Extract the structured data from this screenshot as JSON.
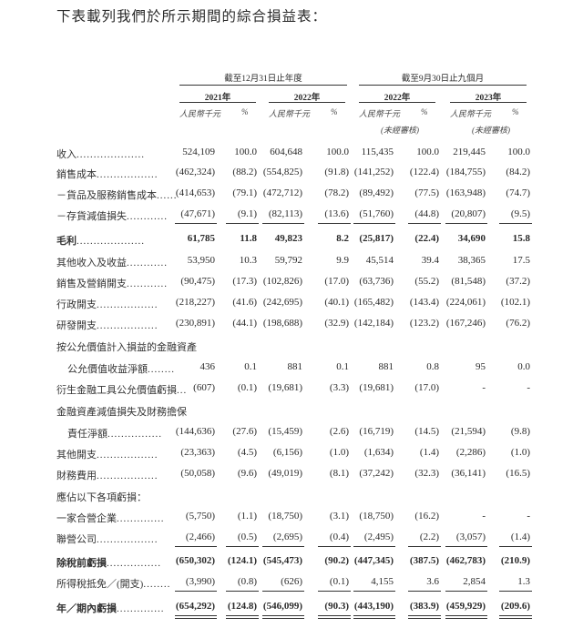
{
  "title": "下表載列我們於所示期間的綜合損益表：",
  "header": {
    "group1": "截至12月31日止年度",
    "group2": "截至9月30日止九個月",
    "years": [
      "2021年",
      "2022年",
      "2022年",
      "2023年"
    ],
    "unit_amount": "人民幣千元",
    "unit_pct": "%",
    "unaudited": "(未經審核)"
  },
  "rows": [
    {
      "label": "收入",
      "dots": "....................",
      "values": [
        "524,109",
        "100.0",
        "604,648",
        "100.0",
        "115,435",
        "100.0",
        "219,445",
        "100.0"
      ]
    },
    {
      "label": "銷售成本",
      "dots": "..................",
      "values": [
        "(462,324)",
        "(88.2)",
        "(554,825)",
        "(91.8)",
        "(141,252)",
        "(122.4)",
        "(184,755)",
        "(84.2)"
      ]
    },
    {
      "label": "－貨品及服務銷售成本",
      "dots": "......",
      "values": [
        "(414,653)",
        "(79.1)",
        "(472,712)",
        "(78.2)",
        "(89,492)",
        "(77.5)",
        "(163,948)",
        "(74.7)"
      ]
    },
    {
      "label": "－存貨減值損失",
      "dots": "............",
      "values": [
        "(47,671)",
        "(9.1)",
        "(82,113)",
        "(13.6)",
        "(51,760)",
        "(44.8)",
        "(20,807)",
        "(9.5)"
      ],
      "underline": true
    },
    {
      "label": "毛利",
      "dots": "....................",
      "values": [
        "61,785",
        "11.8",
        "49,823",
        "8.2",
        "(25,817)",
        "(22.4)",
        "34,690",
        "15.8"
      ],
      "bold": true
    },
    {
      "label": "其他收入及收益",
      "dots": "............",
      "values": [
        "53,950",
        "10.3",
        "59,792",
        "9.9",
        "45,514",
        "39.4",
        "38,365",
        "17.5"
      ]
    },
    {
      "label": "銷售及營銷開支",
      "dots": "............",
      "values": [
        "(90,475)",
        "(17.3)",
        "(102,826)",
        "(17.0)",
        "(63,736)",
        "(55.2)",
        "(81,548)",
        "(37.2)"
      ]
    },
    {
      "label": "行政開支",
      "dots": "..................",
      "values": [
        "(218,227)",
        "(41.6)",
        "(242,695)",
        "(40.1)",
        "(165,482)",
        "(143.4)",
        "(224,061)",
        "(102.1)"
      ]
    },
    {
      "label": "研發開支",
      "dots": "..................",
      "values": [
        "(230,891)",
        "(44.1)",
        "(198,688)",
        "(32.9)",
        "(142,184)",
        "(123.2)",
        "(167,246)",
        "(76.2)"
      ]
    },
    {
      "label": "按公允價值計入損益的金融資產",
      "dots": "",
      "values": [
        "",
        "",
        "",
        "",
        "",
        "",
        "",
        ""
      ]
    },
    {
      "label": "公允價值收益淨額",
      "dots": "........",
      "indent": true,
      "values": [
        "436",
        "0.1",
        "881",
        "0.1",
        "881",
        "0.8",
        "95",
        "0.0"
      ]
    },
    {
      "label": "衍生金融工具公允價值虧損",
      "dots": "...",
      "values": [
        "(607)",
        "(0.1)",
        "(19,681)",
        "(3.3)",
        "(19,681)",
        "(17.0)",
        "-",
        "-"
      ]
    },
    {
      "label": "金融資產減值損失及財務擔保",
      "dots": "",
      "values": [
        "",
        "",
        "",
        "",
        "",
        "",
        "",
        ""
      ]
    },
    {
      "label": "責任淨額",
      "dots": "................",
      "indent": true,
      "values": [
        "(144,636)",
        "(27.6)",
        "(15,459)",
        "(2.6)",
        "(16,719)",
        "(14.5)",
        "(21,594)",
        "(9.8)"
      ]
    },
    {
      "label": "其他開支",
      "dots": "..................",
      "values": [
        "(23,363)",
        "(4.5)",
        "(6,156)",
        "(1.0)",
        "(1,634)",
        "(1.4)",
        "(2,286)",
        "(1.0)"
      ]
    },
    {
      "label": "財務費用",
      "dots": "..................",
      "values": [
        "(50,058)",
        "(9.6)",
        "(49,019)",
        "(8.1)",
        "(37,242)",
        "(32.3)",
        "(36,141)",
        "(16.5)"
      ]
    },
    {
      "label": "應佔以下各項虧損：",
      "dots": "",
      "values": [
        "",
        "",
        "",
        "",
        "",
        "",
        "",
        ""
      ]
    },
    {
      "label": "一家合營企業",
      "dots": "..............",
      "values": [
        "(5,750)",
        "(1.1)",
        "(18,750)",
        "(3.1)",
        "(18,750)",
        "(16.2)",
        "-",
        "-"
      ]
    },
    {
      "label": "聯營公司",
      "dots": "..................",
      "values": [
        "(2,466)",
        "(0.5)",
        "(2,695)",
        "(0.4)",
        "(2,495)",
        "(2.2)",
        "(3,057)",
        "(1.4)"
      ],
      "underline": true
    },
    {
      "label": "除稅前虧損",
      "dots": "................",
      "values": [
        "(650,302)",
        "(124.1)",
        "(545,473)",
        "(90.2)",
        "(447,345)",
        "(387.5)",
        "(462,783)",
        "(210.9)"
      ],
      "bold": true
    },
    {
      "label": "所得稅抵免／(開支)",
      "dots": "........",
      "values": [
        "(3,990)",
        "(0.8)",
        "(626)",
        "(0.1)",
        "4,155",
        "3.6",
        "2,854",
        "1.3"
      ],
      "underline": true
    },
    {
      "label": "年／期內虧損",
      "dots": "..............",
      "values": [
        "(654,292)",
        "(124.8)",
        "(546,099)",
        "(90.3)",
        "(443,190)",
        "(383.9)",
        "(459,929)",
        "(209.6)"
      ],
      "bold": true,
      "double_underline": true
    }
  ]
}
